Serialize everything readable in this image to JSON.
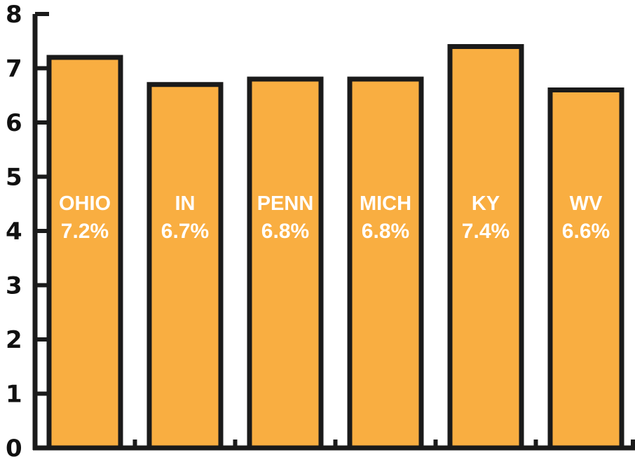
{
  "chart_data": {
    "type": "bar",
    "title": "",
    "xlabel": "",
    "ylabel": "",
    "categories": [
      "OHIO",
      "IN",
      "PENN",
      "MICH",
      "KY",
      "WV"
    ],
    "values": [
      7.2,
      6.7,
      6.8,
      6.8,
      7.4,
      6.6
    ],
    "value_labels": [
      "7.2%",
      "6.7%",
      "6.8%",
      "6.8%",
      "7.4%",
      "6.6%"
    ],
    "ylim": [
      0,
      8
    ],
    "yticks": [
      "0",
      "1",
      "2",
      "3",
      "4",
      "5",
      "6",
      "7",
      "8"
    ],
    "grid": false,
    "legend": "none",
    "colors": {
      "bar_fill": "#F9AE41",
      "bar_stroke": "#1a1a1a",
      "axis": "#1a1a1a",
      "label": "#ffffff"
    }
  }
}
